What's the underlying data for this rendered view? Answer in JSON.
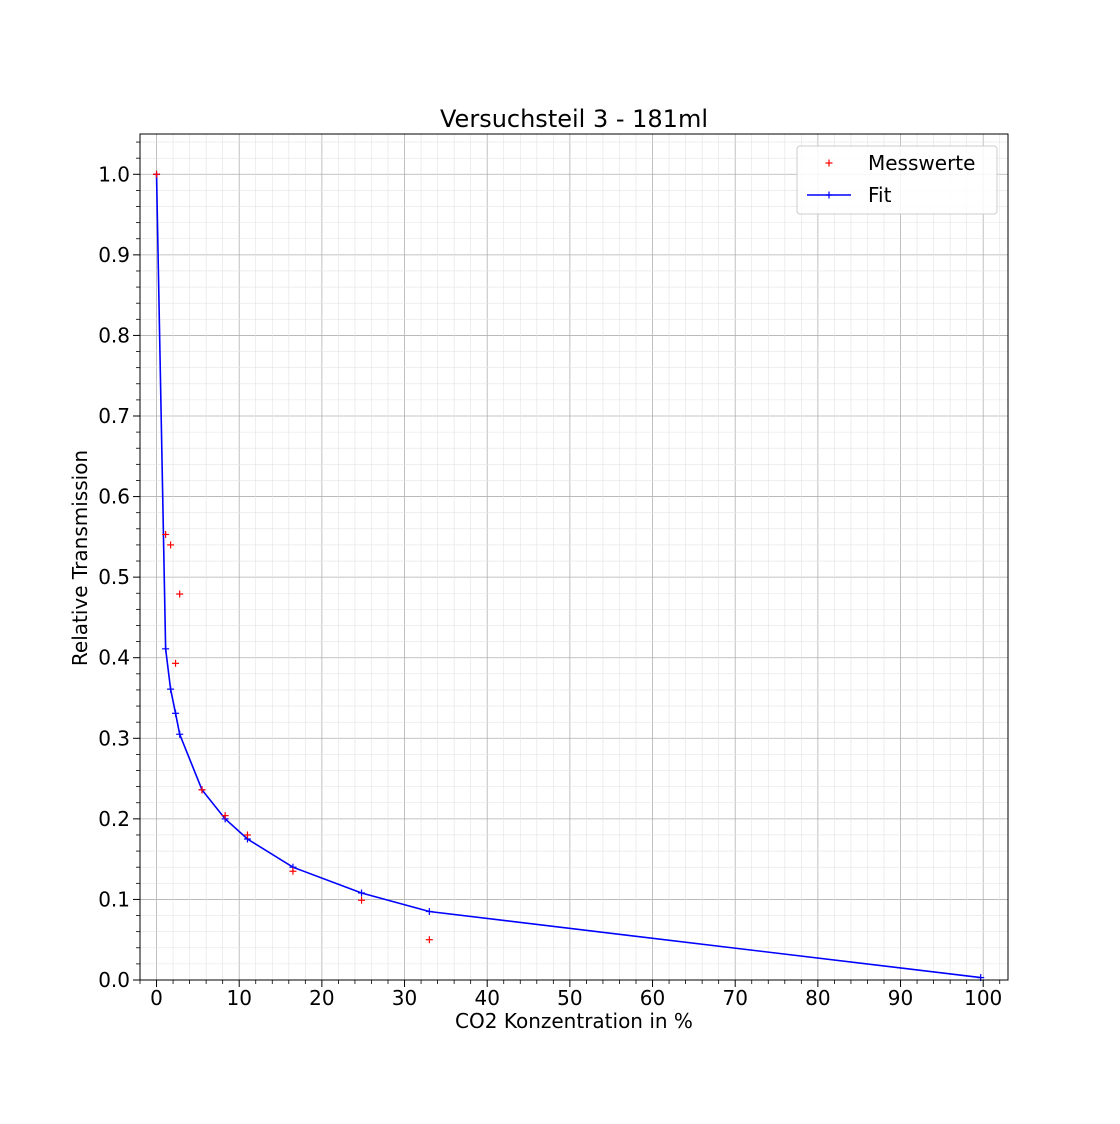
{
  "chart_data": {
    "type": "scatter",
    "title": "Versuchsteil 3 - 181ml",
    "xlabel": "CO2 Konzentration in %",
    "ylabel": "Relative Transmission",
    "xlim": [
      -2,
      103
    ],
    "ylim": [
      0.0,
      1.05
    ],
    "xticks": [
      0,
      10,
      20,
      30,
      40,
      50,
      60,
      70,
      80,
      90,
      100
    ],
    "yticks": [
      0.0,
      0.1,
      0.2,
      0.3,
      0.4,
      0.5,
      0.6,
      0.7,
      0.8,
      0.9,
      1.0
    ],
    "xtick_labels": [
      "0",
      "10",
      "20",
      "30",
      "40",
      "50",
      "60",
      "70",
      "80",
      "90",
      "100"
    ],
    "ytick_labels": [
      "0.0",
      "0.1",
      "0.2",
      "0.3",
      "0.4",
      "0.5",
      "0.6",
      "0.7",
      "0.8",
      "0.9",
      "1.0"
    ],
    "grid": true,
    "legend_position": "top-right",
    "series": [
      {
        "name": "Messwerte",
        "kind": "scatter",
        "marker": "+",
        "color": "#ff0000",
        "x": [
          0.0,
          1.1,
          1.7,
          2.3,
          2.8,
          5.5,
          8.3,
          11.0,
          16.5,
          24.8,
          33.0
        ],
        "y": [
          1.0,
          0.553,
          0.54,
          0.393,
          0.479,
          0.236,
          0.204,
          0.18,
          0.135,
          0.099,
          0.05
        ]
      },
      {
        "name": "Fit",
        "kind": "line",
        "marker": "+",
        "color": "#0000ff",
        "x": [
          0.0,
          1.1,
          1.7,
          2.3,
          2.8,
          5.5,
          8.3,
          11.0,
          16.5,
          24.8,
          33.0,
          99.7
        ],
        "y": [
          1.0,
          0.411,
          0.361,
          0.331,
          0.305,
          0.236,
          0.2,
          0.175,
          0.14,
          0.108,
          0.085,
          0.003
        ]
      }
    ]
  }
}
